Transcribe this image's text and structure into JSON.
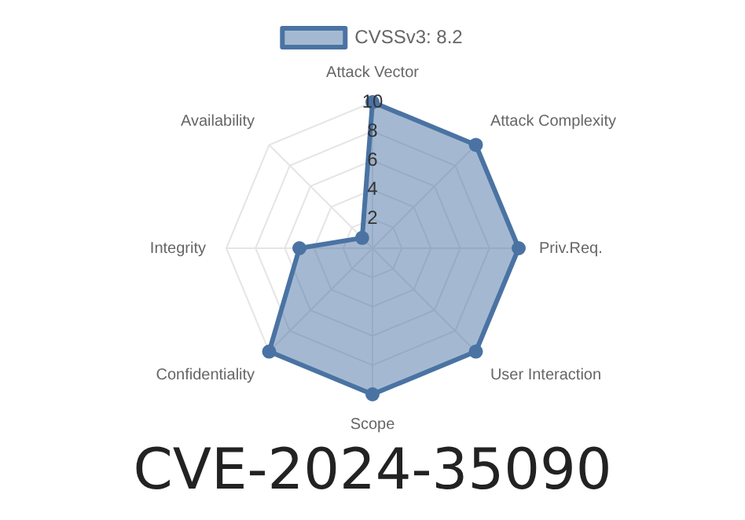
{
  "chart_data": {
    "type": "radar",
    "title": "CVE-2024-35090",
    "categories": [
      "Attack Vector",
      "Attack Complexity",
      "Priv.Req.",
      "User Interaction",
      "Scope",
      "Confidentiality",
      "Integrity",
      "Availability"
    ],
    "series": [
      {
        "name": "CVSSv3: 8.2",
        "color": "#4a73a3",
        "values": [
          10,
          10,
          10,
          10,
          10,
          10,
          5,
          1
        ]
      }
    ],
    "ylim": [
      0,
      10
    ],
    "yticks": [
      2,
      4,
      6,
      8,
      10
    ],
    "grid": true,
    "legend": "top",
    "marker": "circle"
  }
}
